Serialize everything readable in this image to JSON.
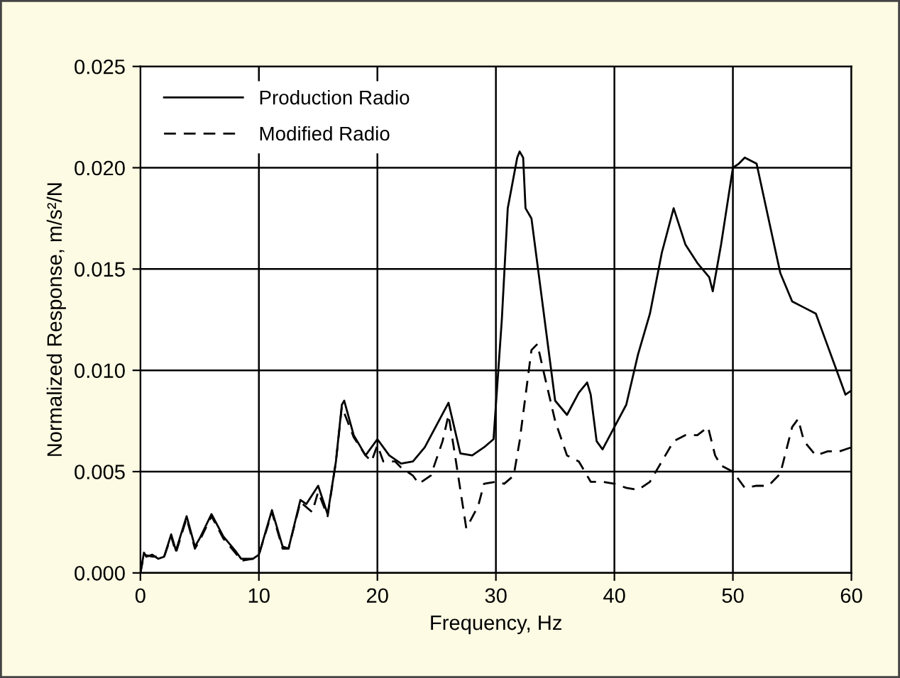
{
  "chart_data": {
    "type": "line",
    "xlabel": "Frequency, Hz",
    "ylabel": "Normalized Response, m/s²/N",
    "xlim": [
      0,
      60
    ],
    "xticks": [
      0,
      10,
      20,
      30,
      40,
      50,
      60
    ],
    "ylim": [
      0,
      0.025
    ],
    "yticks": [
      {
        "value": 0,
        "label": "0.000"
      },
      {
        "value": 0.005,
        "label": "0.005"
      },
      {
        "value": 0.01,
        "label": "0.010"
      },
      {
        "value": 0.015,
        "label": "0.015"
      },
      {
        "value": 0.02,
        "label": "0.020"
      },
      {
        "value": 0.025,
        "label": "0.025"
      }
    ],
    "grid": true,
    "legend": "top left",
    "marker": "none",
    "series": [
      {
        "name": "Production Radio",
        "color": "#000000",
        "line_style": "solid",
        "x": [
          0,
          0.3,
          0.5,
          1,
          1.5,
          2,
          2.6,
          3,
          3.9,
          4.6,
          5,
          6,
          7,
          8,
          8.5,
          9.5,
          10,
          11.1,
          12,
          12.5,
          13.5,
          14,
          15,
          15.8,
          16.5,
          17,
          17.2,
          18,
          19,
          20,
          21,
          22,
          23,
          24,
          26,
          27,
          28,
          29,
          29.8,
          30.5,
          31,
          31.8,
          32,
          32.3,
          32.5,
          33,
          34,
          35,
          36,
          37,
          37.7,
          38,
          38.5,
          39,
          40,
          41,
          42,
          43,
          44,
          45,
          46,
          47,
          48,
          48.3,
          49,
          50,
          50.5,
          51,
          52,
          53,
          54,
          55,
          56,
          57,
          58,
          59,
          59.5,
          60
        ],
        "values": [
          0,
          0.001,
          0.0008,
          0.0009,
          0.0007,
          0.0008,
          0.0019,
          0.0011,
          0.0028,
          0.0013,
          0.0017,
          0.0029,
          0.0018,
          0.0011,
          0.0007,
          0.0007,
          0.0009,
          0.0031,
          0.0013,
          0.0012,
          0.0036,
          0.0034,
          0.0043,
          0.0029,
          0.0055,
          0.0083,
          0.0085,
          0.0068,
          0.0058,
          0.0066,
          0.0058,
          0.0054,
          0.0055,
          0.0062,
          0.0084,
          0.0059,
          0.0058,
          0.0062,
          0.0066,
          0.0125,
          0.018,
          0.0205,
          0.0208,
          0.0205,
          0.018,
          0.0175,
          0.013,
          0.0085,
          0.0078,
          0.0089,
          0.0094,
          0.0088,
          0.0065,
          0.0061,
          0.0072,
          0.0083,
          0.0108,
          0.0128,
          0.0158,
          0.018,
          0.0162,
          0.0153,
          0.0146,
          0.0139,
          0.0162,
          0.02,
          0.0202,
          0.0205,
          0.0202,
          0.0175,
          0.0148,
          0.0134,
          0.0131,
          0.0128,
          0.0112,
          0.0096,
          0.0088,
          0.009
        ]
      },
      {
        "name": "Modified Radio",
        "color": "#000000",
        "line_style": "dashed",
        "x": [
          0,
          0.3,
          1,
          2,
          2.6,
          3,
          3.9,
          4.6,
          5,
          6,
          7,
          8,
          8.5,
          9.5,
          10,
          11.1,
          12,
          12.5,
          13.5,
          14.5,
          15,
          15.8,
          16.5,
          17,
          18,
          19,
          19.5,
          20,
          20.5,
          21.5,
          22,
          23,
          23.5,
          24.5,
          25.5,
          26,
          26.5,
          27.5,
          28.5,
          29,
          30,
          30.7,
          31.5,
          32,
          33,
          33.5,
          34,
          35,
          36,
          37,
          38,
          39,
          40,
          41,
          42,
          43,
          44,
          45,
          46,
          47,
          47.9,
          48.5,
          49,
          50,
          51,
          52,
          53,
          54,
          55,
          55.5,
          56,
          57,
          58,
          59,
          60
        ],
        "values": [
          0,
          0.0009,
          0.0008,
          0.0008,
          0.0018,
          0.001,
          0.0027,
          0.0012,
          0.0016,
          0.0028,
          0.0017,
          0.001,
          0.0006,
          0.0007,
          0.0009,
          0.003,
          0.0012,
          0.0012,
          0.0035,
          0.003,
          0.004,
          0.0028,
          0.0055,
          0.0082,
          0.0067,
          0.0058,
          0.0055,
          0.0063,
          0.0055,
          0.0055,
          0.0052,
          0.0048,
          0.0044,
          0.0048,
          0.0065,
          0.0078,
          0.006,
          0.0022,
          0.0033,
          0.0044,
          0.0045,
          0.0044,
          0.0048,
          0.0065,
          0.011,
          0.0113,
          0.01,
          0.0075,
          0.0058,
          0.0055,
          0.0045,
          0.0045,
          0.0044,
          0.0042,
          0.0041,
          0.0045,
          0.0055,
          0.0065,
          0.0068,
          0.0068,
          0.0072,
          0.0058,
          0.0053,
          0.005,
          0.0042,
          0.0043,
          0.0043,
          0.0049,
          0.0072,
          0.0076,
          0.0065,
          0.0058,
          0.006,
          0.006,
          0.0062
        ]
      }
    ]
  }
}
